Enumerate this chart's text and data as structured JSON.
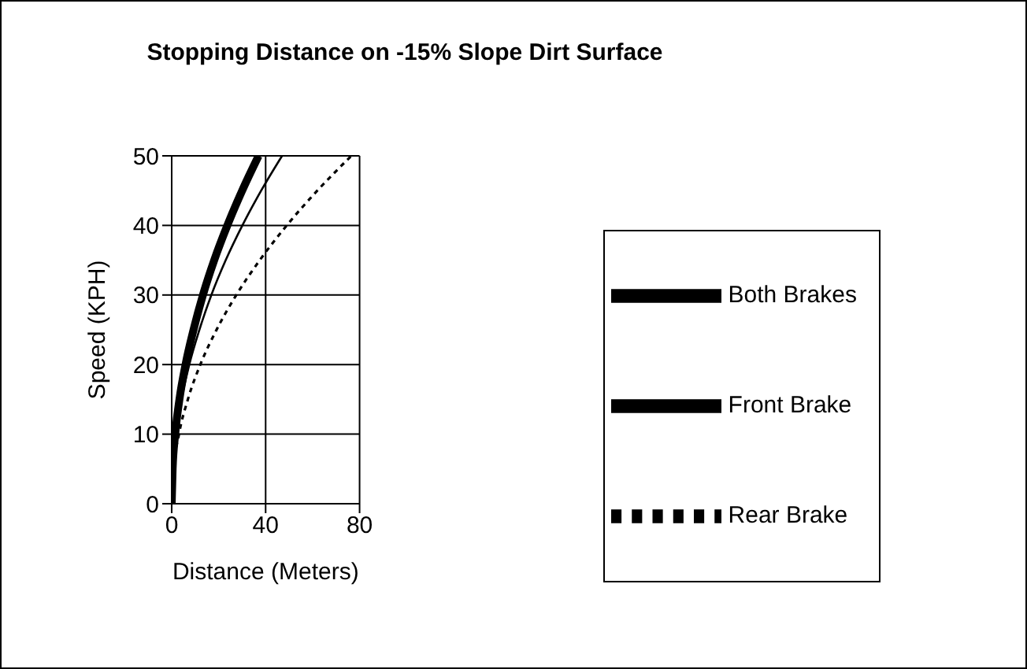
{
  "chart_data": {
    "type": "line",
    "title": "Stopping Distance on -15% Slope Dirt Surface",
    "xlabel": "Distance (Meters)",
    "ylabel": "Speed (KPH)",
    "xlim": [
      0,
      80
    ],
    "xticks": [
      0,
      40,
      80
    ],
    "ylim": [
      0,
      50
    ],
    "yticks": [
      0,
      10,
      20,
      30,
      40,
      50
    ],
    "grid": true,
    "legend": "right",
    "marker": "none",
    "series": [
      {
        "name": "Rear Brake",
        "color": "#000000",
        "line_style": "dotted",
        "x": [
          0,
          0.8,
          3.1,
          6.9,
          12.2,
          19.1,
          27.5,
          37.5,
          49,
          62,
          76.5
        ],
        "values": [
          0,
          5,
          10,
          15,
          20,
          25,
          30,
          35,
          40,
          45,
          50
        ]
      },
      {
        "name": "Front Brake",
        "color": "#000000",
        "line_style": "solid",
        "x": [
          0,
          0.5,
          1.9,
          4.2,
          7.5,
          11.8,
          16.9,
          23,
          30.1,
          38.1,
          47
        ],
        "values": [
          0,
          5,
          10,
          15,
          20,
          25,
          30,
          35,
          40,
          45,
          50
        ]
      },
      {
        "name": "Both Brakes",
        "color": "#000000",
        "line_style": "solid",
        "x": [
          0,
          0.4,
          1.5,
          3.3,
          5.9,
          9.3,
          13.3,
          18.1,
          23.7,
          30,
          37
        ],
        "values": [
          0,
          5,
          10,
          15,
          20,
          25,
          30,
          35,
          40,
          45,
          50
        ]
      }
    ]
  }
}
